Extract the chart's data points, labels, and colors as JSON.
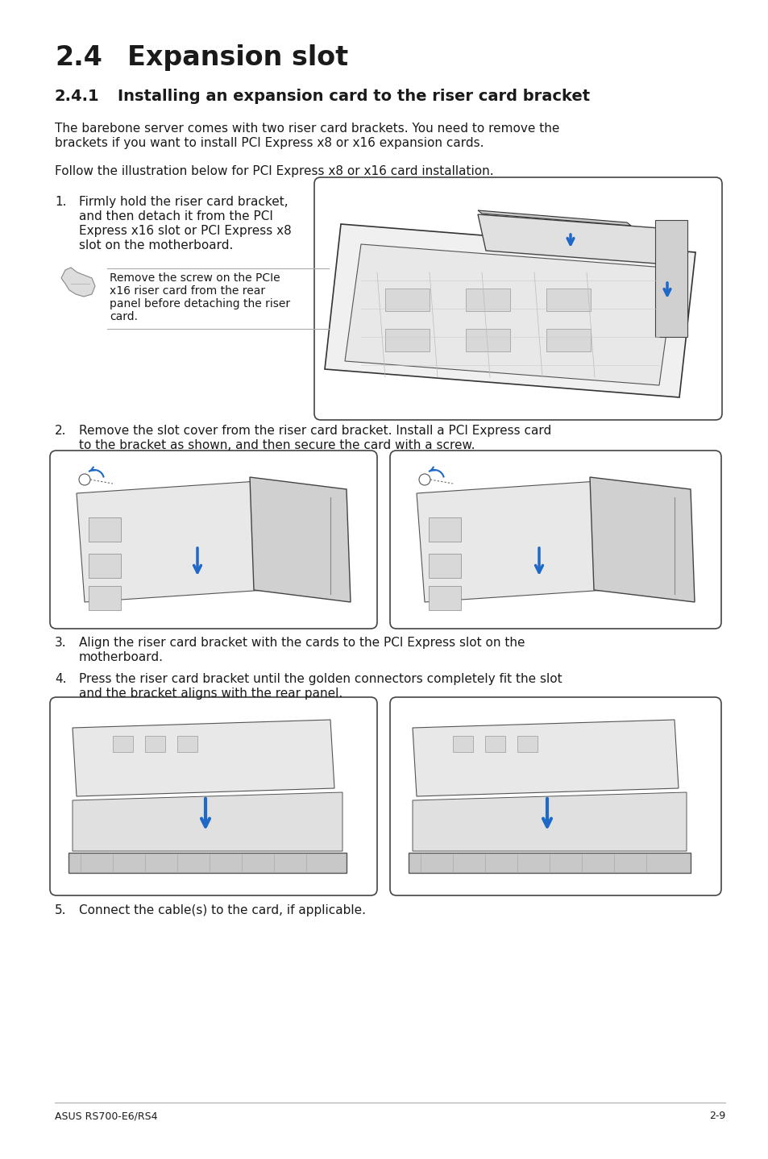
{
  "bg_color": "#ffffff",
  "title_num": "2.4",
  "title_text": "Expansion slot",
  "subtitle_num": "2.4.1",
  "subtitle_text": "Installing an expansion card to the riser card bracket",
  "body_text_1a": "The barebone server comes with two riser card brackets. You need to remove the",
  "body_text_1b": "brackets if you want to install PCI Express x8 or x16 expansion cards.",
  "body_text_2": "Follow the illustration below for PCI Express x8 or x16 card installation.",
  "step1_num": "1.",
  "step1_line1": "Firmly hold the riser card bracket,",
  "step1_line2": "and then detach it from the PCI",
  "step1_line3": "Express x16 slot or PCI Express x8",
  "step1_line4": "slot on the motherboard.",
  "note_line1": "Remove the screw on the PCIe",
  "note_line2": "x16 riser card from the rear",
  "note_line3": "panel before detaching the riser",
  "note_line4": "card.",
  "step2_num": "2.",
  "step2_line1": "Remove the slot cover from the riser card bracket. Install a PCI Express card",
  "step2_line2": "to the bracket as shown, and then secure the card with a screw.",
  "step3_num": "3.",
  "step3_line1": "Align the riser card bracket with the cards to the PCI Express slot on the",
  "step3_line2": "motherboard.",
  "step4_num": "4.",
  "step4_line1": "Press the riser card bracket until the golden connectors completely fit the slot",
  "step4_line2": "and the bracket aligns with the rear panel.",
  "step5_num": "5.",
  "step5_text": "Connect the cable(s) to the card, if applicable.",
  "footer_left": "ASUS RS700-E6/RS4",
  "footer_right": "2-9",
  "text_color": "#1a1a1a",
  "blue_color": "#1e68c8",
  "grey_color": "#888888",
  "box_edge_color": "#444444",
  "box_face_color": "#ffffff"
}
